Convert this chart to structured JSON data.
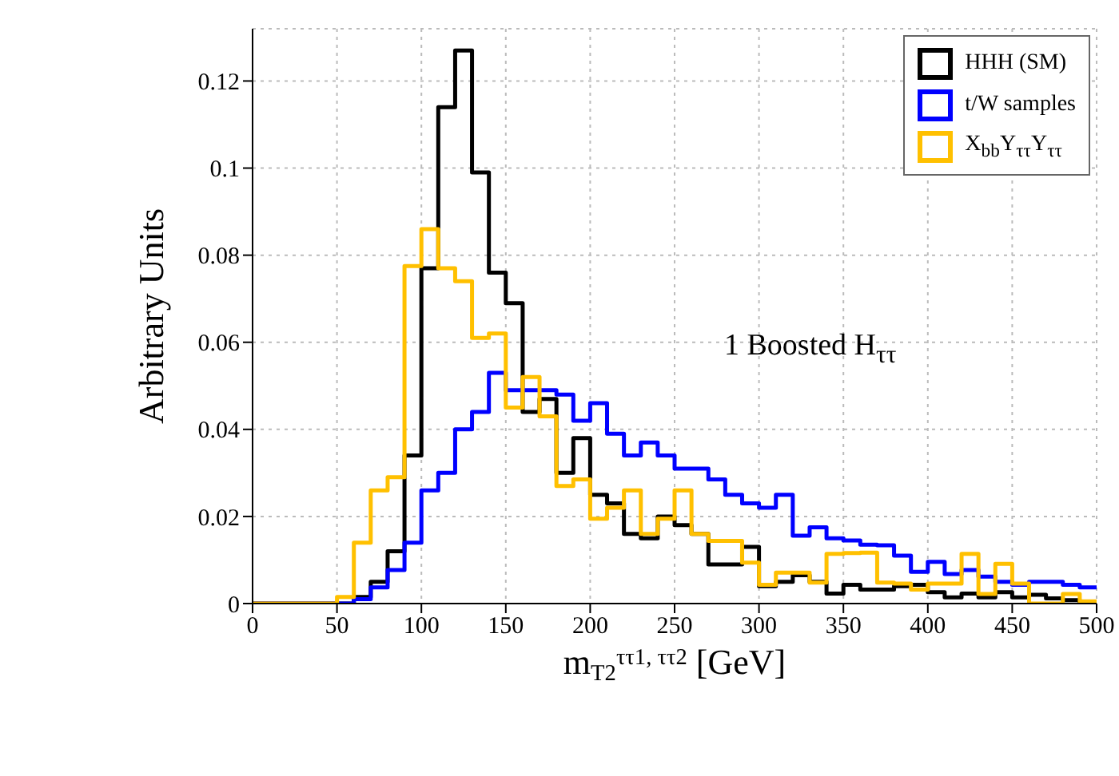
{
  "chart_data": {
    "type": "histogram",
    "xlabel": "m$_{T2}$$^{ττ1, ττ2}$ [GeV]",
    "ylabel": "Arbitrary Units",
    "annotations": [
      "1 Boosted H$_{ττ}$"
    ],
    "bins": [
      0,
      10,
      20,
      30,
      40,
      50,
      60,
      70,
      80,
      90,
      100,
      110,
      120,
      130,
      140,
      150,
      160,
      170,
      180,
      190,
      200,
      210,
      220,
      230,
      240,
      250,
      260,
      270,
      280,
      290,
      300,
      310,
      320,
      330,
      340,
      350,
      360,
      370,
      380,
      390,
      400,
      410,
      420,
      430,
      440,
      450,
      460,
      470,
      480,
      490,
      500
    ],
    "series": [
      {
        "name": "HHH (SM)",
        "color": "#000000",
        "values": [
          0,
          0,
          0,
          0,
          0,
          0,
          0.0015,
          0.005,
          0.012,
          0.034,
          0.077,
          0.114,
          0.127,
          0.099,
          0.076,
          0.069,
          0.044,
          0.047,
          0.03,
          0.038,
          0.025,
          0.023,
          0.016,
          0.015,
          0.02,
          0.018,
          0.016,
          0.009,
          0.009,
          0.013,
          0.004,
          0.005,
          0.0065,
          0.005,
          0.0023,
          0.0043,
          0.0032,
          0.0032,
          0.004,
          0.0043,
          0.0026,
          0.0014,
          0.0023,
          0.0014,
          0.0026,
          0.0014,
          0.002,
          0.0012,
          0.0008,
          0.0003
        ]
      },
      {
        "name": "t/W samples",
        "color": "#0000ff",
        "values": [
          0,
          0,
          0,
          0,
          0,
          0,
          0.001,
          0.0037,
          0.0077,
          0.014,
          0.026,
          0.03,
          0.04,
          0.044,
          0.053,
          0.049,
          0.049,
          0.049,
          0.048,
          0.042,
          0.046,
          0.039,
          0.034,
          0.037,
          0.034,
          0.031,
          0.031,
          0.0285,
          0.025,
          0.023,
          0.022,
          0.025,
          0.0156,
          0.0175,
          0.015,
          0.0145,
          0.0135,
          0.0134,
          0.011,
          0.0073,
          0.0096,
          0.0068,
          0.0077,
          0.0062,
          0.005,
          0.0043,
          0.005,
          0.005,
          0.0043,
          0.0037
        ]
      },
      {
        "name": "X$_{bb}$Y$_{ττ}$Y$_{ττ}$",
        "color": "#ffc000",
        "values": [
          0,
          0,
          0,
          0,
          0,
          0.0015,
          0.014,
          0.026,
          0.029,
          0.0775,
          0.086,
          0.077,
          0.074,
          0.061,
          0.062,
          0.045,
          0.052,
          0.043,
          0.027,
          0.0285,
          0.0195,
          0.022,
          0.026,
          0.016,
          0.0195,
          0.026,
          0.016,
          0.0144,
          0.0144,
          0.0094,
          0.0043,
          0.0071,
          0.0071,
          0.0048,
          0.0114,
          0.0116,
          0.0117,
          0.0048,
          0.0046,
          0.0032,
          0.0046,
          0.0046,
          0.0114,
          0.0022,
          0.0091,
          0.0046,
          0,
          0,
          0.0022,
          0.0005
        ]
      }
    ],
    "xlim": [
      0,
      500
    ],
    "xticks": [
      0,
      50,
      100,
      150,
      200,
      250,
      300,
      350,
      400,
      450,
      500
    ],
    "ylim": [
      0,
      0.132
    ],
    "yticks": [
      0,
      0.02,
      0.04,
      0.06,
      0.08,
      0.1,
      0.12
    ],
    "grid": true,
    "legend": "top right"
  }
}
